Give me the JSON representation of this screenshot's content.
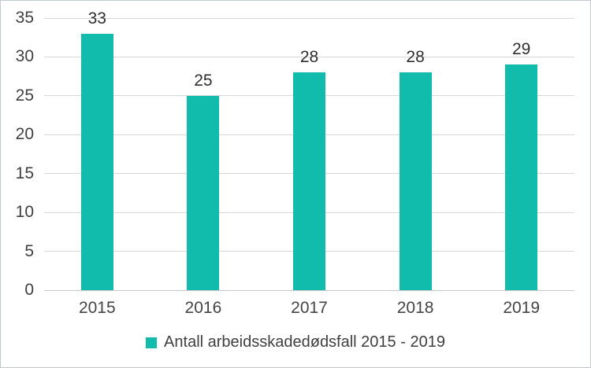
{
  "chart_data": {
    "type": "bar",
    "categories": [
      "2015",
      "2016",
      "2017",
      "2018",
      "2019"
    ],
    "values": [
      33,
      25,
      28,
      28,
      29
    ],
    "title": "",
    "xlabel": "",
    "ylabel": "",
    "ylim": [
      0,
      35
    ],
    "yticks": [
      0,
      5,
      10,
      15,
      20,
      25,
      30,
      35
    ],
    "grid": "horizontal",
    "legend_position": "bottom",
    "legend_label": "Antall arbeidsskadedødsfall 2015 - 2019",
    "bar_color": "#12bcad",
    "gridline_color": "#d8d8d8",
    "label_color": "#404040"
  }
}
